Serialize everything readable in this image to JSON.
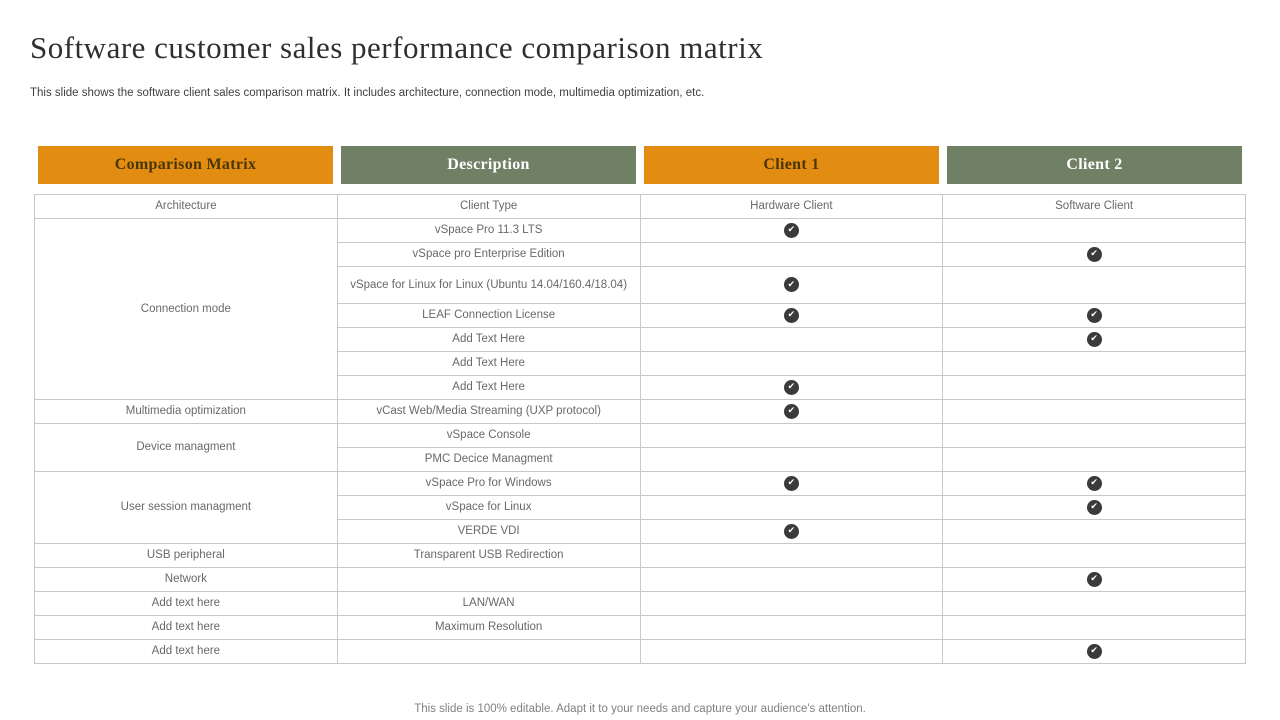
{
  "slide": {
    "title": "Software customer sales performance comparison matrix",
    "subtitle": "This slide shows the software client sales comparison matrix. It includes architecture, connection mode, multimedia optimization, etc.",
    "footer": "This slide is 100% editable. Adapt it to your needs and capture your audience's attention."
  },
  "colors": {
    "orange": "#e28d11",
    "green": "#6f8064",
    "header_text_on_orange": "#4a3506",
    "header_text_on_green": "#ffffff",
    "check_circle": "#3a3a3a",
    "body_text": "#696969",
    "grid_border": "#c8c8c8"
  },
  "icons": {
    "check_glyph": "✔"
  },
  "table": {
    "headers": [
      {
        "label": "Comparison Matrix",
        "bg": "#e28d11",
        "fg": "#4a3506"
      },
      {
        "label": "Description",
        "bg": "#6f8064",
        "fg": "#ffffff"
      },
      {
        "label": "Client 1",
        "bg": "#e28d11",
        "fg": "#4a3506"
      },
      {
        "label": "Client 2",
        "bg": "#6f8064",
        "fg": "#ffffff"
      }
    ],
    "groups": [
      {
        "category": "Architecture",
        "rows": [
          {
            "description": "Client Type",
            "client1": "Hardware Client",
            "client2": "Software Client"
          }
        ]
      },
      {
        "category": "Connection mode",
        "rows": [
          {
            "description": "vSpace Pro 11.3 LTS",
            "client1": true,
            "client2": false
          },
          {
            "description": "vSpace pro Enterprise Edition",
            "client1": false,
            "client2": true
          },
          {
            "description": "vSpace for Linux for Linux (Ubuntu 14.04/160.4/18.04)",
            "client1": true,
            "client2": false,
            "tall": true
          },
          {
            "description": "LEAF Connection License",
            "client1": true,
            "client2": true
          },
          {
            "description": "Add Text Here",
            "client1": false,
            "client2": true
          },
          {
            "description": "Add Text Here",
            "client1": false,
            "client2": false
          },
          {
            "description": "Add Text Here",
            "client1": true,
            "client2": false
          }
        ]
      },
      {
        "category": "Multimedia optimization",
        "rows": [
          {
            "description": "vCast Web/Media Streaming (UXP protocol)",
            "client1": true,
            "client2": false
          }
        ]
      },
      {
        "category": "Device managment",
        "rows": [
          {
            "description": "vSpace Console",
            "client1": false,
            "client2": false
          },
          {
            "description": "PMC Decice Managment",
            "client1": false,
            "client2": false
          }
        ]
      },
      {
        "category": "User session managment",
        "rows": [
          {
            "description": "vSpace Pro for Windows",
            "client1": true,
            "client2": true
          },
          {
            "description": "vSpace for Linux",
            "client1": false,
            "client2": true
          },
          {
            "description": "VERDE  VDI",
            "client1": true,
            "client2": false
          }
        ]
      },
      {
        "category": "USB peripheral",
        "rows": [
          {
            "description": "Transparent USB Redirection",
            "client1": false,
            "client2": false
          }
        ]
      },
      {
        "category": "Network",
        "rows": [
          {
            "description": "",
            "client1": false,
            "client2": true
          }
        ]
      },
      {
        "category": "Add text here",
        "rows": [
          {
            "description": "LAN/WAN",
            "client1": false,
            "client2": false
          }
        ]
      },
      {
        "category": "Add text here",
        "rows": [
          {
            "description": "Maximum Resolution",
            "client1": false,
            "client2": false
          }
        ]
      },
      {
        "category": "Add text here",
        "rows": [
          {
            "description": "",
            "client1": false,
            "client2": true
          }
        ]
      }
    ]
  }
}
